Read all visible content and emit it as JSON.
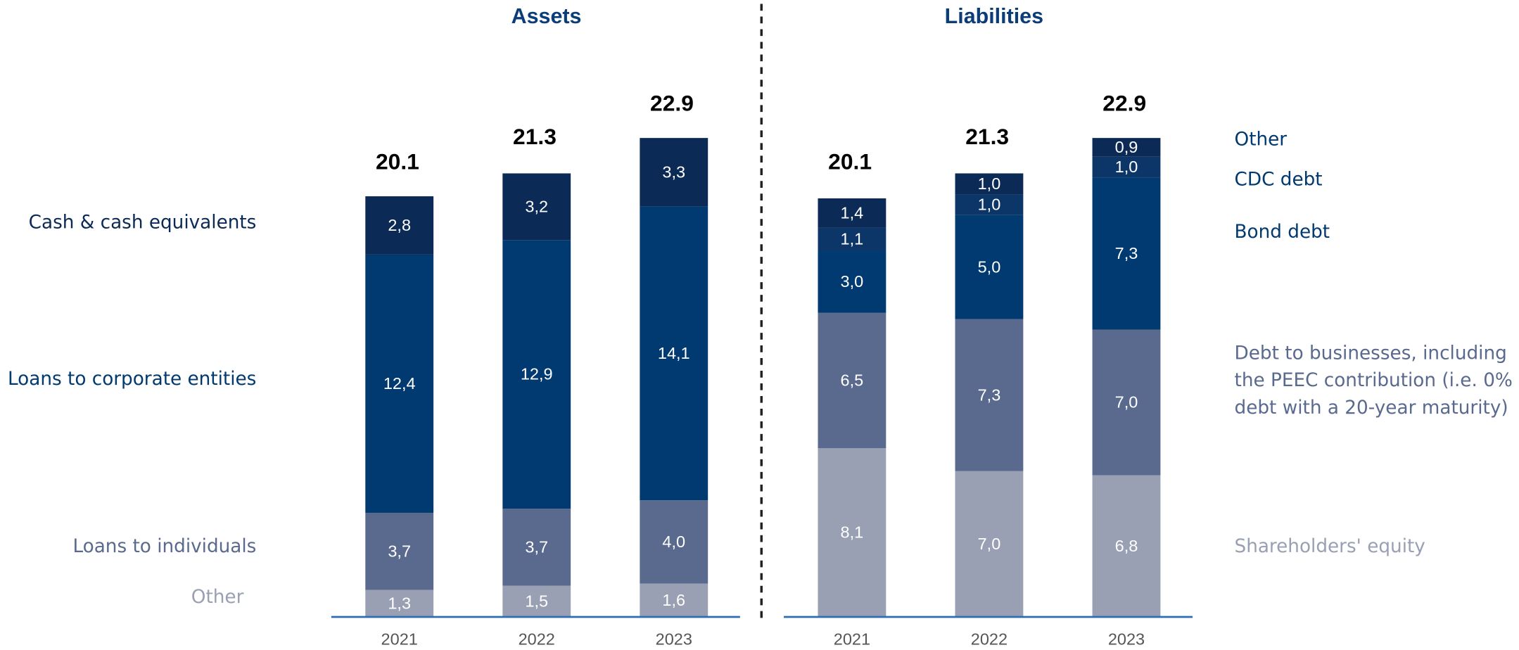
{
  "chart_data": [
    {
      "type": "bar",
      "stacked": true,
      "title": "Assets",
      "categories": [
        "2021",
        "2022",
        "2023"
      ],
      "totals": [
        20.1,
        21.3,
        22.9
      ],
      "series": [
        {
          "name": "Other",
          "color": "#9aa0b4",
          "values": [
            1.3,
            1.5,
            1.6
          ],
          "value_labels": [
            "1,3",
            "1,5",
            "1,6"
          ]
        },
        {
          "name": "Loans to individuals",
          "color": "#5a6a8e",
          "values": [
            3.7,
            3.7,
            4.0
          ],
          "value_labels": [
            "3,7",
            "3,7",
            "4,0"
          ]
        },
        {
          "name": "Loans to corporate entities",
          "color": "#003a70",
          "values": [
            12.4,
            12.9,
            14.1
          ],
          "value_labels": [
            "12,4",
            "12,9",
            "14,1"
          ]
        },
        {
          "name": "Cash & cash equivalents",
          "color": "#0b2a55",
          "values": [
            2.8,
            3.2,
            3.3
          ],
          "value_labels": [
            "2,8",
            "3,2",
            "3,3"
          ]
        }
      ]
    },
    {
      "type": "bar",
      "stacked": true,
      "title": "Liabilities",
      "categories": [
        "2021",
        "2022",
        "2023"
      ],
      "totals": [
        20.1,
        21.3,
        22.9
      ],
      "series": [
        {
          "name": "Shareholders' equity",
          "color": "#9aa0b4",
          "values": [
            8.1,
            7.0,
            6.8
          ],
          "value_labels": [
            "8,1",
            "7,0",
            "6,8"
          ]
        },
        {
          "name": "Debt to businesses, including the PEEC contribution (i.e. 0% debt with a 20-year maturity)",
          "color": "#5a6a8e",
          "values": [
            6.5,
            7.3,
            7.0
          ],
          "value_labels": [
            "6,5",
            "7,3",
            "7,0"
          ]
        },
        {
          "name": "Bond debt",
          "color": "#003a70",
          "values": [
            3.0,
            5.0,
            7.3
          ],
          "value_labels": [
            "3,0",
            "5,0",
            "7,3"
          ]
        },
        {
          "name": "CDC debt",
          "color": "#0d3668",
          "values": [
            1.1,
            1.0,
            1.0
          ],
          "value_labels": [
            "1,1",
            "1,0",
            "1,0"
          ]
        },
        {
          "name": "Other",
          "color": "#0b2a55",
          "values": [
            1.4,
            1.0,
            0.9
          ],
          "value_labels": [
            "1,4",
            "1,0",
            "0,9"
          ]
        }
      ]
    }
  ]
}
